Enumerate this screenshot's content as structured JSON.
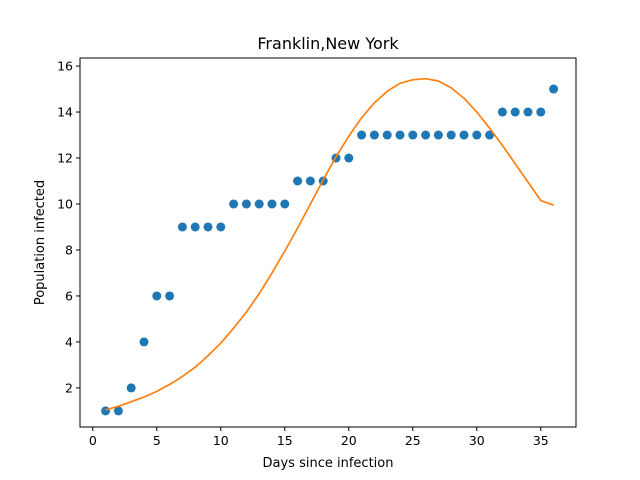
{
  "chart_data": {
    "type": "scatter",
    "title": "Franklin,New York",
    "xlabel": "Days since infection",
    "ylabel": "Population infected",
    "xlim": [
      -1.0,
      37.75
    ],
    "ylim": [
      0.3,
      16.35
    ],
    "xticks": [
      0,
      5,
      10,
      15,
      20,
      25,
      30,
      35
    ],
    "yticks": [
      2,
      4,
      6,
      8,
      10,
      12,
      14,
      16
    ],
    "grid": false,
    "legend": "none",
    "series": [
      {
        "kind": "scatter",
        "color": "#1f77b4",
        "x": [
          1,
          2,
          3,
          4,
          5,
          6,
          7,
          8,
          9,
          10,
          11,
          12,
          13,
          14,
          15,
          16,
          17,
          18,
          19,
          20,
          21,
          22,
          23,
          24,
          25,
          26,
          27,
          28,
          29,
          30,
          31,
          32,
          33,
          34,
          35,
          36
        ],
        "y": [
          1,
          1,
          2,
          4,
          6,
          6,
          9,
          9,
          9,
          9,
          10,
          10,
          10,
          10,
          10,
          11,
          11,
          11,
          12,
          12,
          13,
          13,
          13,
          13,
          13,
          13,
          13,
          13,
          13,
          13,
          13,
          14,
          14,
          14,
          14,
          15
        ]
      },
      {
        "kind": "line",
        "color": "#ff7f0e",
        "x": [
          1,
          2,
          3,
          4,
          5,
          6,
          7,
          8,
          9,
          10,
          11,
          12,
          13,
          14,
          15,
          16,
          17,
          18,
          19,
          20,
          21,
          22,
          23,
          24,
          25,
          26,
          27,
          28,
          29,
          30,
          31,
          32,
          33,
          34,
          35,
          36
        ],
        "y": [
          1.05,
          1.2,
          1.4,
          1.6,
          1.85,
          2.15,
          2.5,
          2.9,
          3.4,
          3.95,
          4.6,
          5.3,
          6.1,
          7.0,
          7.95,
          8.95,
          10.0,
          11.05,
          12.05,
          12.95,
          13.75,
          14.4,
          14.9,
          15.25,
          15.4,
          15.45,
          15.35,
          15.05,
          14.6,
          14.0,
          13.3,
          12.55,
          11.75,
          10.95,
          10.15,
          9.95
        ]
      }
    ]
  }
}
